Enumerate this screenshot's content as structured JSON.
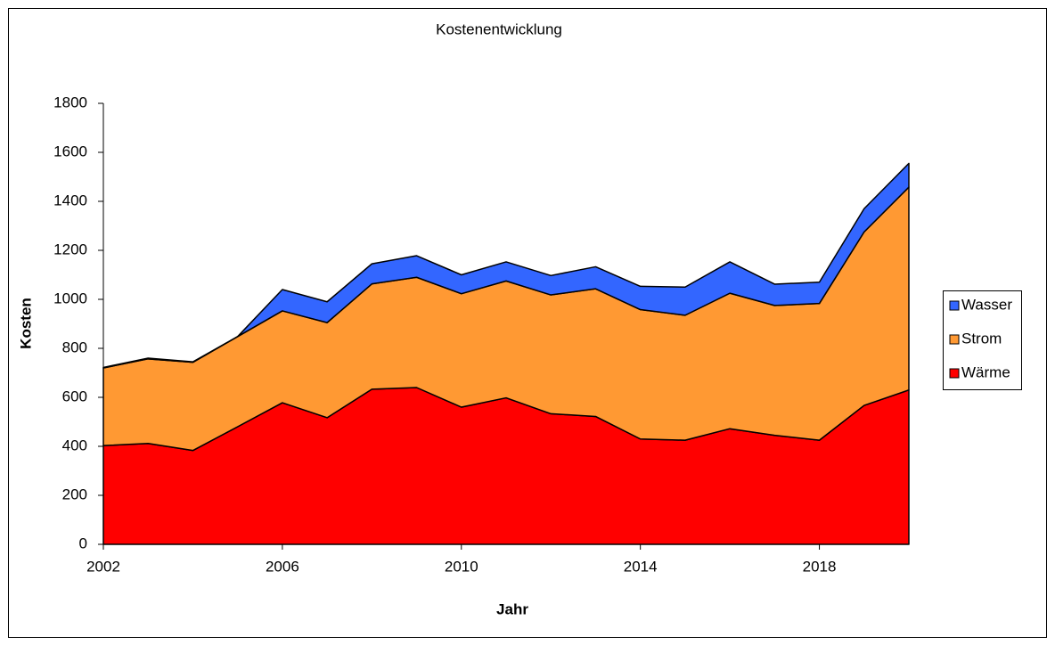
{
  "chart_data": {
    "type": "stacked_area",
    "title": "Kostenentwicklung",
    "x_label": "Jahr",
    "y_label": "Kosten",
    "x": [
      2002,
      2003,
      2004,
      2005,
      2006,
      2007,
      2008,
      2009,
      2010,
      2011,
      2012,
      2013,
      2014,
      2015,
      2016,
      2017,
      2018,
      2019,
      2020
    ],
    "series": [
      {
        "name": "Wärme",
        "color": "#ff0000",
        "values": [
          403,
          412,
          383,
          480,
          578,
          517,
          633,
          640,
          560,
          598,
          533,
          522,
          430,
          425,
          472,
          445,
          425,
          567,
          630
        ]
      },
      {
        "name": "Strom",
        "color": "#ff9933",
        "values": [
          317,
          345,
          360,
          368,
          375,
          388,
          430,
          450,
          463,
          477,
          485,
          521,
          528,
          510,
          553,
          530,
          558,
          708,
          828
        ]
      },
      {
        "name": "Wasser",
        "color": "#3366ff",
        "values": [
          2,
          3,
          2,
          0,
          87,
          85,
          82,
          88,
          77,
          78,
          79,
          90,
          95,
          115,
          128,
          87,
          87,
          95,
          97
        ]
      }
    ],
    "xlim": [
      2002,
      2020
    ],
    "xticks": [
      2002,
      2006,
      2010,
      2014,
      2018
    ],
    "ylim": [
      0,
      1800
    ],
    "yticks": [
      0,
      200,
      400,
      600,
      800,
      1000,
      1200,
      1400,
      1600,
      1800
    ],
    "grid": false,
    "legend": "right"
  }
}
